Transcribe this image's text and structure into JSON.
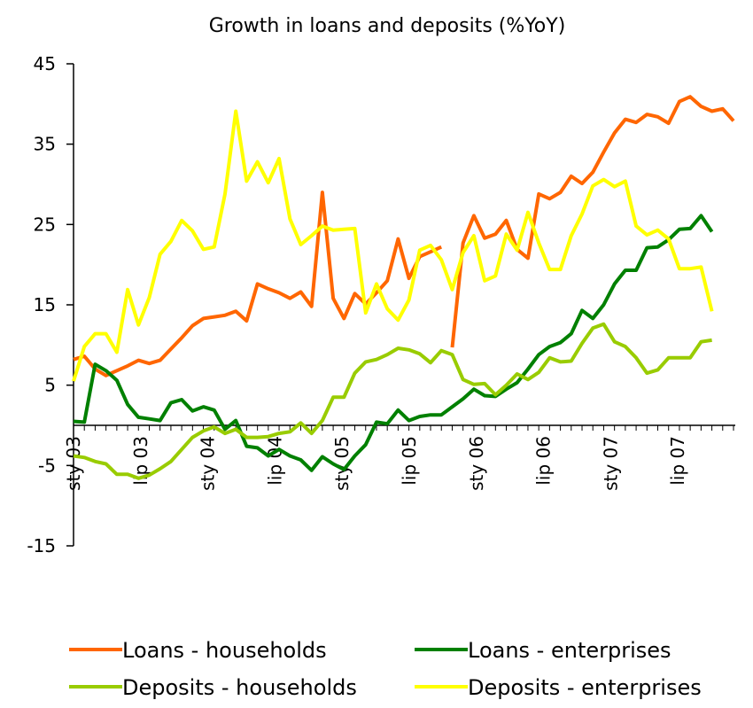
{
  "chart_data": {
    "type": "line",
    "title": "Growth in loans and deposits (%YoY)",
    "xlabel": "",
    "ylabel": "",
    "ylim": [
      -15,
      45
    ],
    "y_ticks": [
      45,
      35,
      25,
      15,
      5,
      -5,
      -15
    ],
    "y_tick_labels": [
      "45",
      "35",
      "25",
      "15",
      "5",
      "-5",
      "-15"
    ],
    "x_tick_labels": [
      "sty 03",
      "lip 03",
      "sty 04",
      "lip 04",
      "sty 05",
      "lip 05",
      "sty 06",
      "lip 06",
      "sty 07",
      "lip 07"
    ],
    "grid": false,
    "legend_position": "bottom",
    "series": [
      {
        "name": "Loans - households",
        "color": "#FF6600",
        "values": [
          8.2,
          8.6,
          7.0,
          6.2,
          6.8,
          7.4,
          8.1,
          7.7,
          8.1,
          9.5,
          10.9,
          12.4,
          13.3,
          13.5,
          13.7,
          14.2,
          13.0,
          17.6,
          17.0,
          16.5,
          15.8,
          16.6,
          14.8,
          29.0,
          15.8,
          13.3,
          16.4,
          15.1,
          16.5,
          18.0,
          23.2,
          18.3,
          21.0,
          21.6,
          22.2,
          9.7,
          22.7,
          26.1,
          23.3,
          23.8,
          25.5,
          21.9,
          20.8,
          28.8,
          28.2,
          29.0,
          31.0,
          30.1,
          31.5,
          34.0,
          36.4,
          38.1,
          37.7,
          38.7,
          38.4,
          37.6,
          40.3,
          40.9,
          39.7,
          39.1,
          39.4,
          37.9
        ],
        "gaps_after": [
          34
        ]
      },
      {
        "name": "Loans - enterprises",
        "color": "#008000",
        "values": [
          0.5,
          0.4,
          7.6,
          6.8,
          5.6,
          2.6,
          1.0,
          0.8,
          0.6,
          2.8,
          3.2,
          1.8,
          2.3,
          1.9,
          -0.5,
          0.6,
          -2.6,
          -2.8,
          -3.8,
          -3.0,
          -3.8,
          -4.3,
          -5.6,
          -3.9,
          -4.8,
          -5.5,
          -3.8,
          -2.4,
          0.4,
          0.2,
          1.9,
          0.6,
          1.1,
          1.3,
          1.3,
          2.3,
          3.3,
          4.5,
          3.7,
          3.6,
          4.5,
          5.3,
          7.0,
          8.8,
          9.8,
          10.3,
          11.4,
          14.3,
          13.3,
          15.0,
          17.6,
          19.3,
          19.3,
          22.1,
          22.2,
          23.1,
          24.4,
          24.5,
          26.1,
          24.1
        ]
      },
      {
        "name": "Deposits - households",
        "color": "#99CC00",
        "values": [
          -3.8,
          -4.0,
          -4.5,
          -4.8,
          -6.1,
          -6.1,
          -6.6,
          -6.2,
          -5.4,
          -4.5,
          -3.0,
          -1.5,
          -0.7,
          -0.2,
          -1.0,
          -0.5,
          -1.5,
          -1.5,
          -1.4,
          -1.0,
          -0.8,
          0.3,
          -1.0,
          0.6,
          3.5,
          3.5,
          6.5,
          7.9,
          8.2,
          8.8,
          9.6,
          9.4,
          8.9,
          7.8,
          9.3,
          8.8,
          5.7,
          5.1,
          5.2,
          3.8,
          5.0,
          6.4,
          5.7,
          6.6,
          8.4,
          7.9,
          8.0,
          10.2,
          12.1,
          12.6,
          10.4,
          9.8,
          8.4,
          6.5,
          6.9,
          8.4,
          8.4,
          8.4,
          10.4,
          10.6
        ]
      },
      {
        "name": "Deposits - enterprises",
        "color": "#FFFF00",
        "values": [
          5.5,
          9.8,
          11.4,
          11.4,
          9.1,
          16.9,
          12.5,
          15.9,
          21.3,
          22.9,
          25.5,
          24.2,
          21.9,
          22.2,
          28.8,
          39.1,
          30.4,
          32.8,
          30.2,
          33.2,
          25.7,
          22.5,
          23.6,
          24.8,
          24.3,
          24.4,
          24.5,
          14.0,
          17.6,
          14.5,
          13.1,
          15.6,
          21.8,
          22.4,
          20.6,
          16.9,
          21.5,
          23.6,
          18.0,
          18.6,
          23.8,
          21.8,
          26.5,
          22.7,
          19.4,
          19.4,
          23.6,
          26.3,
          29.8,
          30.6,
          29.7,
          30.4,
          24.8,
          23.7,
          24.3,
          23.2,
          19.5,
          19.5,
          19.7,
          14.2
        ]
      }
    ]
  }
}
